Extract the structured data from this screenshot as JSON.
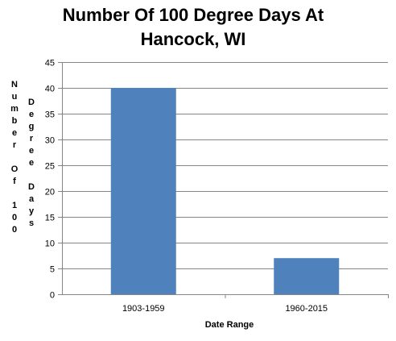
{
  "chart_data": {
    "type": "bar",
    "title_lines": [
      "Number Of 100 Degree Days At",
      "Hancock, WI"
    ],
    "categories": [
      "1903-1959",
      "1960-2015"
    ],
    "values": [
      40,
      7
    ],
    "xlabel": "Date Range",
    "ylabel_columns": [
      [
        "N",
        "u",
        "m",
        "b",
        "e",
        "r",
        "",
        "O",
        "f",
        "",
        "1",
        "0",
        "0"
      ],
      [
        "D",
        "e",
        "g",
        "r",
        "e",
        "e",
        "",
        "D",
        "a",
        "y",
        "s"
      ]
    ],
    "ylim": [
      0,
      45
    ],
    "yticks": [
      0,
      5,
      10,
      15,
      20,
      25,
      30,
      35,
      40,
      45
    ],
    "grid": true,
    "bar_color": "#4F81BD",
    "grid_color": "#868686"
  }
}
